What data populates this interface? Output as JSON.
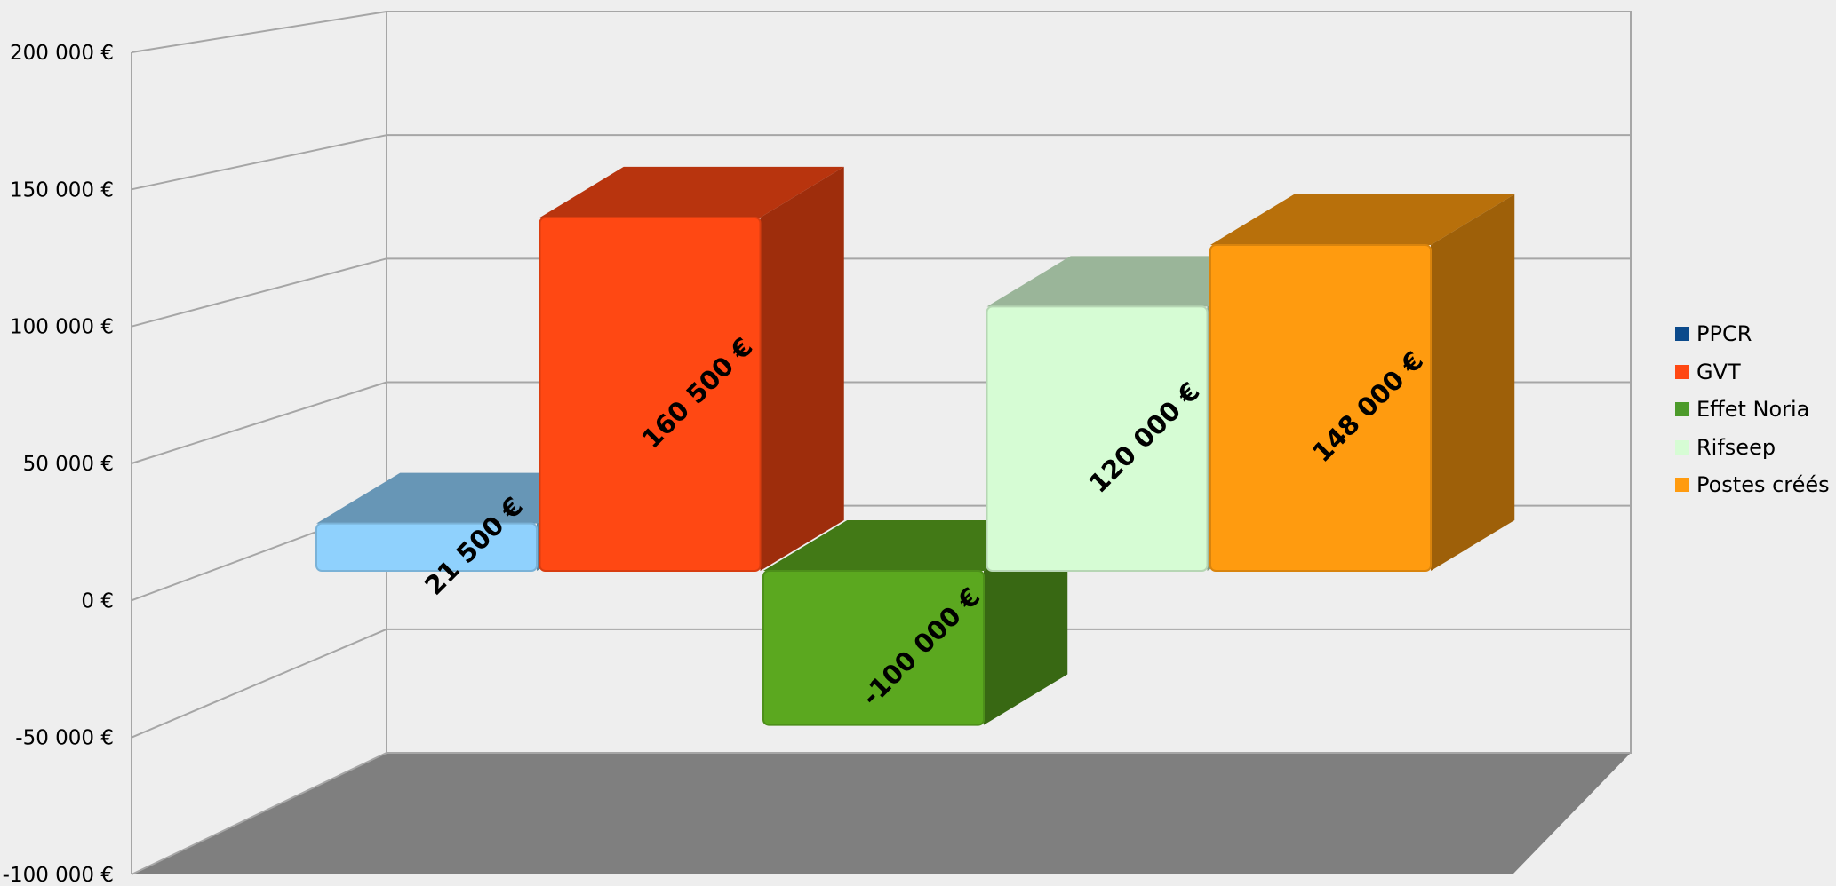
{
  "chart_data": {
    "type": "bar",
    "variant": "3d-column",
    "title": "",
    "xlabel": "",
    "ylabel": "",
    "ylim": [
      -100000,
      200000
    ],
    "yticks": [
      200000,
      150000,
      100000,
      50000,
      0,
      -50000,
      -100000
    ],
    "ytick_labels": [
      "200 000 €",
      "150 000 €",
      "100 000 €",
      "50 000 €",
      "0 €",
      "-50 000 €",
      "-100 000 €"
    ],
    "grid": true,
    "legend_position": "right",
    "series": [
      {
        "name": "PPCR",
        "value": 21500,
        "label": "21 500 €",
        "color": "#0b4a8b",
        "bar_color": "#8fd1fd"
      },
      {
        "name": "GVT",
        "value": 160500,
        "label": "160 500 €",
        "color": "#ff4813",
        "bar_color": "#ff4813"
      },
      {
        "name": "Effet Noria",
        "value": -100000,
        "label": "-100 000 €",
        "color": "#4c9a2a",
        "bar_color": "#5ba81f"
      },
      {
        "name": "Rifseep",
        "value": 120000,
        "label": "120 000 €",
        "color": "#d6fcd4",
        "bar_color": "#d6fcd4"
      },
      {
        "name": "Postes créés",
        "value": 148000,
        "label": "148 000 €",
        "color": "#ff9b0f",
        "bar_color": "#ff9b0f"
      }
    ]
  }
}
